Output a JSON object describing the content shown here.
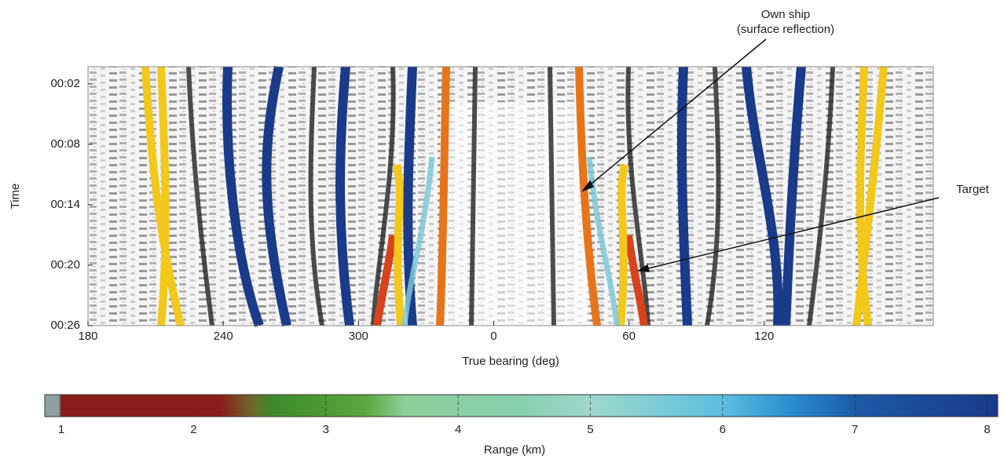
{
  "chart_data": {
    "type": "bearing-time",
    "ylabel": "Time",
    "xlabel": "True bearing (deg)",
    "xlim": [
      180,
      555
    ],
    "xticks": [
      180,
      240,
      300,
      {
        "value": 360,
        "label": "0"
      },
      {
        "value": 420,
        "label": "60"
      },
      {
        "value": 480,
        "label": "120"
      }
    ],
    "ylim": [
      0.3,
      26
    ],
    "y_inverted": true,
    "yticks": [
      {
        "value": 2,
        "label": "00:02"
      },
      {
        "value": 8,
        "label": "00:08"
      },
      {
        "value": 14,
        "label": "00:14"
      },
      {
        "value": 20,
        "label": "00:20"
      },
      {
        "value": 26,
        "label": "00:26"
      }
    ],
    "annotations": [
      "Own ship",
      "(surface reflection)",
      "Target"
    ],
    "colorbar": {
      "label": "Range (km)",
      "lim": [
        0.875,
        8.08
      ],
      "ticks": [
        1,
        2,
        3,
        4,
        5,
        6,
        7,
        8
      ],
      "stops": [
        {
          "value": 0.875,
          "color": "#8fa0a0"
        },
        {
          "value": 0.98,
          "color": "#8fa0a0"
        },
        {
          "value": 1.0,
          "color": "#8b1c1c"
        },
        {
          "value": 2.2,
          "color": "#8b1c1c"
        },
        {
          "value": 2.45,
          "color": "#6e6a2a"
        },
        {
          "value": 2.6,
          "color": "#3d8a2c"
        },
        {
          "value": 3.3,
          "color": "#5aa83c"
        },
        {
          "value": 3.6,
          "color": "#8ccf9a"
        },
        {
          "value": 4.5,
          "color": "#88cfb0"
        },
        {
          "value": 5.0,
          "color": "#9ed8cc"
        },
        {
          "value": 6.0,
          "color": "#5cbfe0"
        },
        {
          "value": 6.5,
          "color": "#2a8fd0"
        },
        {
          "value": 7.0,
          "color": "#1c5aa8"
        },
        {
          "value": 8.08,
          "color": "#1a3a8a"
        }
      ]
    }
  }
}
